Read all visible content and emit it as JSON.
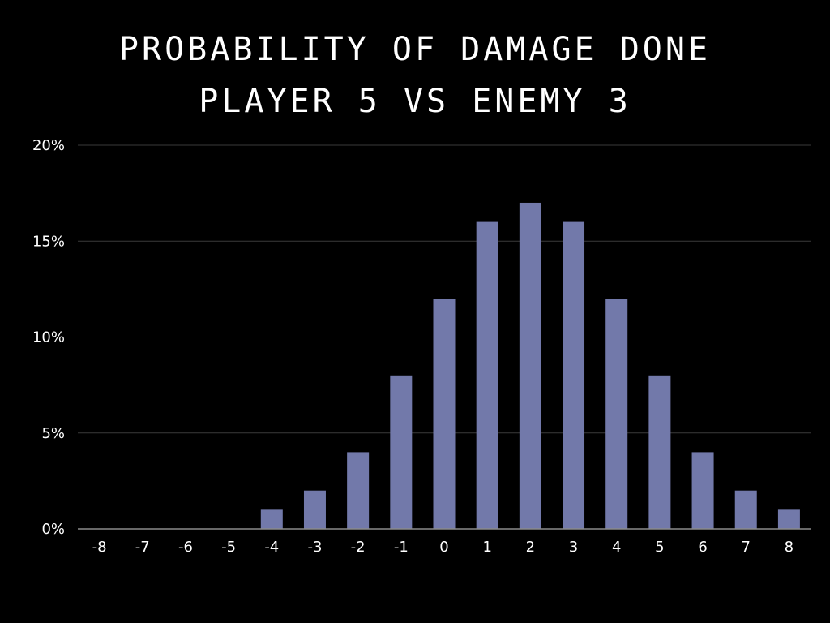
{
  "chart_data": {
    "type": "bar",
    "title": "PROBABILITY OF DAMAGE DONE",
    "subtitle": "PLAYER 5 VS ENEMY 3",
    "xlabel": "",
    "ylabel": "",
    "categories": [
      "-8",
      "-7",
      "-6",
      "-5",
      "-4",
      "-3",
      "-2",
      "-1",
      "0",
      "1",
      "2",
      "3",
      "4",
      "5",
      "6",
      "7",
      "8"
    ],
    "values": [
      0,
      0,
      0,
      0,
      1,
      2,
      4,
      8,
      12,
      16,
      17,
      16,
      12,
      8,
      4,
      2,
      1
    ],
    "ylim": [
      0,
      20
    ],
    "yticks": [
      0,
      5,
      10,
      15,
      20
    ],
    "ytick_labels": [
      "0%",
      "5%",
      "10%",
      "15%",
      "20%"
    ],
    "grid": true,
    "legend": "none",
    "colors": {
      "background": "#000000",
      "bar": "#7279aa",
      "grid": "#3a3a3a",
      "axis": "#8a8a8a",
      "text": "#ffffff"
    }
  }
}
